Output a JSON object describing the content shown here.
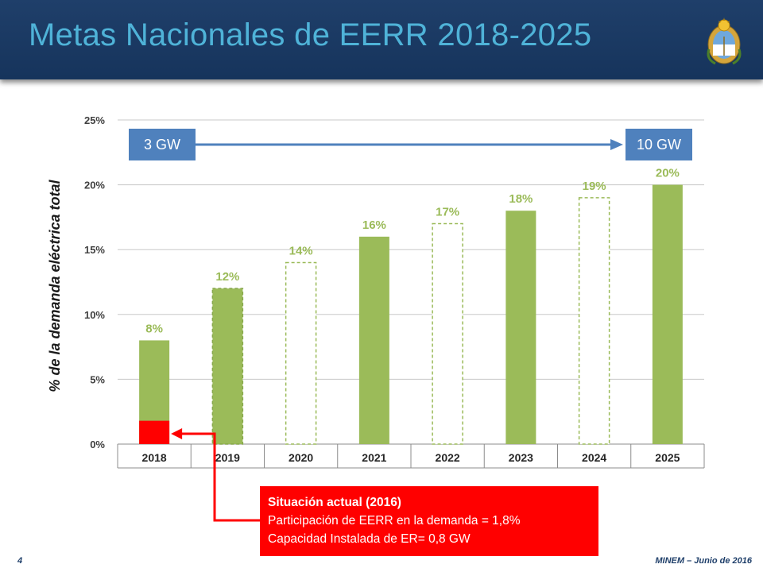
{
  "header": {
    "title": "Metas Nacionales de EERR 2018-2025"
  },
  "chart_data": {
    "type": "bar",
    "categories": [
      "2018",
      "2019",
      "2020",
      "2021",
      "2022",
      "2023",
      "2024",
      "2025"
    ],
    "values": [
      8,
      12,
      14,
      16,
      17,
      18,
      19,
      20
    ],
    "data_labels": [
      "8%",
      "12%",
      "14%",
      "16%",
      "17%",
      "18%",
      "19%",
      "20%"
    ],
    "bar_style": [
      "solid",
      "solid-dashed-outline",
      "dashed-outline",
      "solid",
      "dashed-outline",
      "solid",
      "dashed-outline",
      "solid"
    ],
    "current_value": {
      "category": "2018",
      "value": 1.8
    },
    "ylabel": "% de la demanda eléctrica total",
    "ylim": [
      0,
      25
    ],
    "yticks": [
      "0%",
      "5%",
      "10%",
      "15%",
      "20%",
      "25%"
    ],
    "grid": true,
    "colors": {
      "bar": "#9bbb59",
      "label": "#9bbb59",
      "current": "#ff0000",
      "grid": "#c8c8c8",
      "arrow": "#4f81bd"
    }
  },
  "capacity": {
    "start": "3 GW",
    "end": "10 GW"
  },
  "callout": {
    "title": "Situación actual (2016)",
    "line1": "Participación de EERR en la demanda =  1,8%",
    "line2": "Capacidad Instalada de ER= 0,8 GW"
  },
  "footer": {
    "page": "4",
    "source": "MINEM – Junio de 2016"
  }
}
